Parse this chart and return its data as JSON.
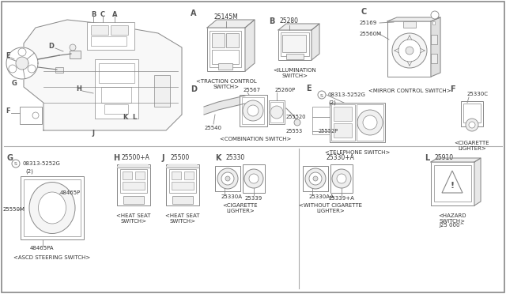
{
  "bg_color": "#f5f5f0",
  "border_color": "#aaaaaa",
  "line_color": "#888888",
  "dark_line": "#555555",
  "text_color": "#333333",
  "part_numbers": {
    "A": "25145M",
    "B": "25280",
    "C_top": "25169",
    "C_left": "25560M",
    "D_top": "25567",
    "D_mid": "25260P",
    "D_bot": "25540",
    "E_s": "08313-5252G",
    "E_s2": "(2)",
    "E_mid": "255520",
    "E_bot": "25553",
    "E_bot2": "25552P",
    "F": "25330C",
    "G_s": "08313-5252G",
    "G_s2": "(2)",
    "G_top": "48465P",
    "G_left": "25550M",
    "G_bot": "48465PA",
    "H": "25500+A",
    "J": "25500",
    "K_top": "25330",
    "K_mid": "25330A",
    "K_bot": "25339",
    "KW_top": "25330+A",
    "KW_mid": "25330AA",
    "KW_bot": "25339+A",
    "L": "25910"
  },
  "captions": {
    "A": "<TRACTION CONTROL\nSWITCH>",
    "B": "<ILLUMINATION\nSWITCH>",
    "C": "<MIRROR CONTROL SWITCH>",
    "D": "<COMBINATION SWITCH>",
    "E": "<TELEPHONE SWITCH>",
    "F": "<CIGARETTE\nLIGHTER>",
    "G": "<ASCD STEERING SWITCH>",
    "H": "<HEAT SEAT\nSWITCH>",
    "J": "<HEAT SEAT\nSWITCH>",
    "K": "<CIGARETTE\nLIGHTER>",
    "KW": "<WITHOUT CIGARETTE\nLIGHTER>",
    "L": "<HAZARD\nSWITCH>"
  },
  "footer": "J25 000^"
}
